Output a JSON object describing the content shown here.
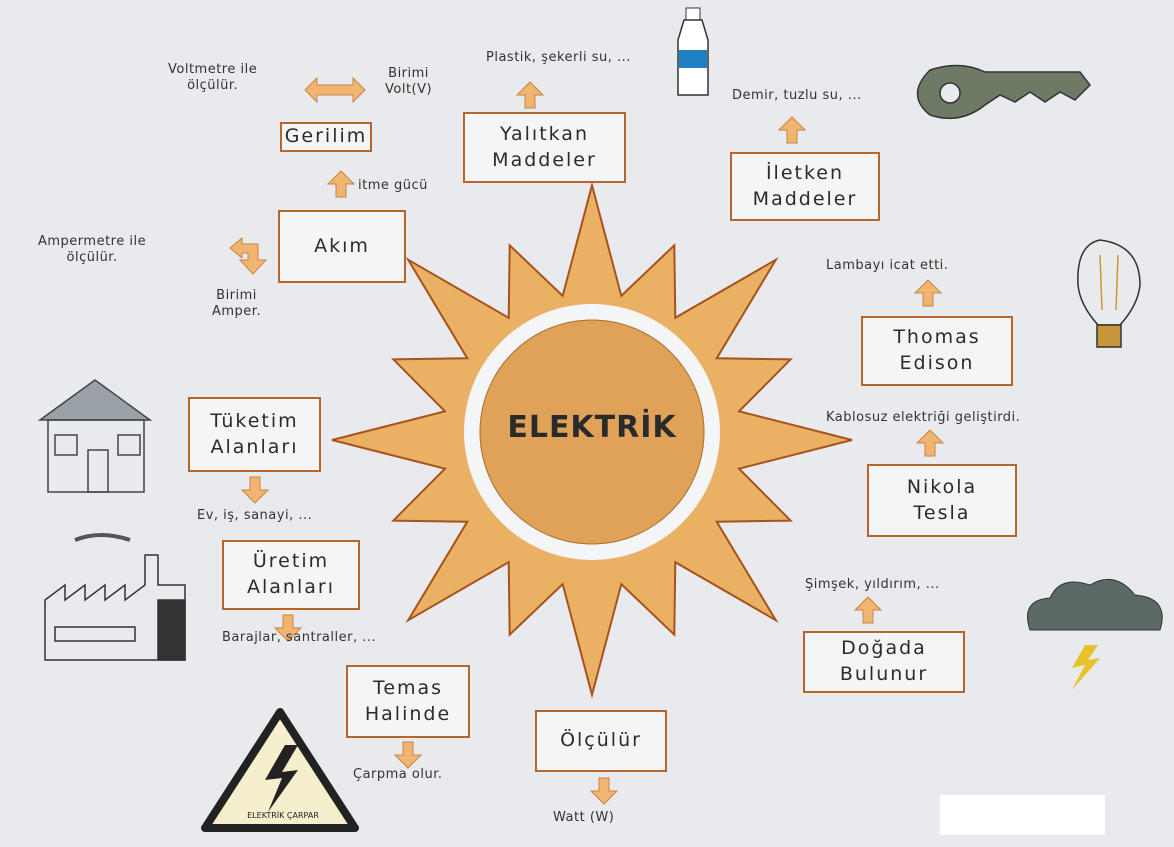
{
  "center": "ELEKTRİK",
  "nodes": [
    {
      "label": [
        "Gerilim"
      ],
      "notes": [
        [
          "Voltmetre ile",
          "ölçülür."
        ],
        [
          "Birimi",
          "Volt(V)"
        ]
      ]
    },
    {
      "label": [
        "Akım"
      ],
      "notes": [
        [
          "itme gücü"
        ],
        [
          "Ampermetre ile",
          "ölçülür."
        ],
        [
          "Birimi",
          "Amper."
        ]
      ]
    },
    {
      "label": [
        "Yalıtkan",
        "Maddeler"
      ],
      "notes": [
        [
          "Plastik, şekerli su, ..."
        ]
      ]
    },
    {
      "label": [
        "İletken",
        "Maddeler"
      ],
      "notes": [
        [
          "Demir, tuzlu su, ..."
        ]
      ]
    },
    {
      "label": [
        "Thomas",
        "Edison"
      ],
      "notes": [
        [
          "Lambayı icat etti."
        ]
      ]
    },
    {
      "label": [
        "Nikola",
        "Tesla"
      ],
      "notes": [
        [
          "Kablosuz elektriği geliştirdi."
        ]
      ]
    },
    {
      "label": [
        "Doğada",
        "Bulunur"
      ],
      "notes": [
        [
          "Şimşek, yıldırım, ..."
        ]
      ]
    },
    {
      "label": [
        "Ölçülür"
      ],
      "notes": [
        [
          "Watt (W)"
        ]
      ]
    },
    {
      "label": [
        "Temas",
        "Halinde"
      ],
      "notes": [
        [
          "Çarpma olur."
        ]
      ]
    },
    {
      "label": [
        "Üretim",
        "Alanları"
      ],
      "notes": [
        [
          "Barajlar, santraller, ..."
        ]
      ]
    },
    {
      "label": [
        "Tüketim",
        "Alanları"
      ],
      "notes": [
        [
          "Ev, iş, sanayi, ..."
        ]
      ]
    }
  ],
  "warning_sign": "ELEKTRİK ÇARPAR"
}
